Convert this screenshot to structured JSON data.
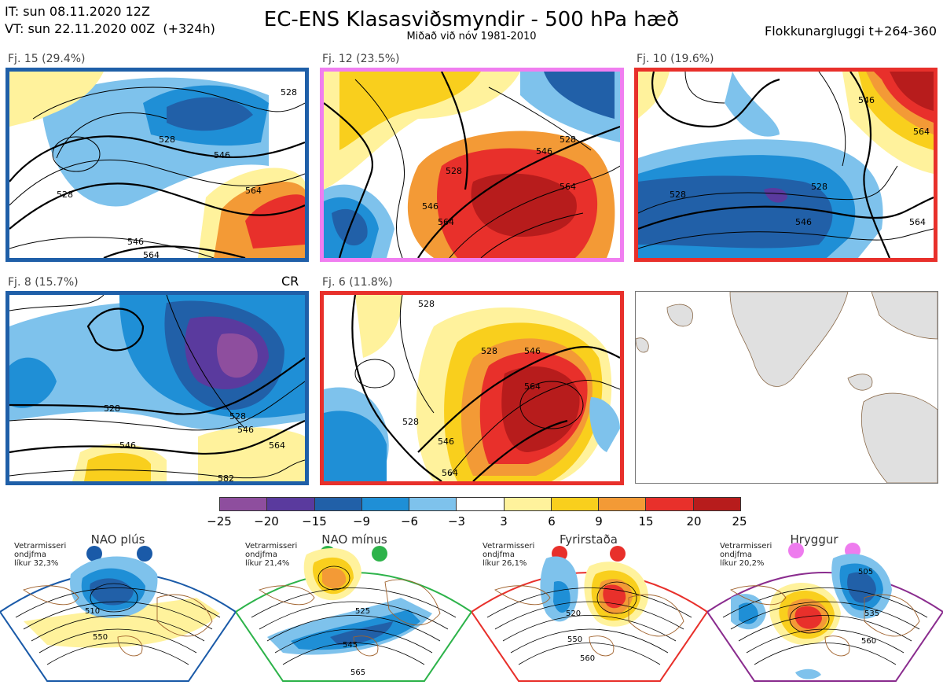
{
  "header": {
    "it_line": "IT: sun 08.11.2020 12Z",
    "vt_line": "VT: sun 22.11.2020 00Z  (+324h)",
    "title": "EC-ENS Klasasviðsmyndir - 500 hPa hæð",
    "subtitle": "Miðað við nóv 1981-2010",
    "window": "Flokkunargluggi t+264-360"
  },
  "panels": [
    {
      "label": "Fj. 15 (29.4%)",
      "border": "#1f5fa8",
      "contours": [
        "528",
        "546",
        "564",
        "528",
        "546",
        "564",
        "528"
      ]
    },
    {
      "label": "Fj. 12 (23.5%)",
      "border": "#f07ef0",
      "contours": [
        "546",
        "528",
        "564",
        "546",
        "564",
        "528"
      ]
    },
    {
      "label": "Fj. 10 (19.6%)",
      "border": "#e8302b",
      "contours": [
        "528",
        "528",
        "546",
        "564",
        "546",
        "564"
      ]
    },
    {
      "label": "Fj. 8 (15.7%)",
      "border": "#1f5fa8",
      "extra": "CR",
      "contours": [
        "528",
        "546",
        "564",
        "528",
        "546",
        "582"
      ]
    },
    {
      "label": "Fj. 6 (11.8%)",
      "border": "#e8302b",
      "contours": [
        "528",
        "546",
        "564",
        "546",
        "528",
        "564",
        "528"
      ]
    }
  ],
  "colorbar": {
    "colors": [
      "#8e4e9e",
      "#5a3a9e",
      "#2160a8",
      "#1f8fd6",
      "#7ec2ec",
      "#ffffff",
      "#fff29c",
      "#f9cf1d",
      "#f39a36",
      "#e8302b",
      "#b71c1c"
    ],
    "ticks": [
      "−25",
      "−20",
      "−15",
      "−9",
      "−6",
      "−3",
      "3",
      "6",
      "9",
      "15",
      "20",
      "25"
    ]
  },
  "regimes": [
    {
      "title": "NAO plús",
      "stat_label": "Vetrarmisseri\nondjfma\nlíkur 32,3%",
      "dot_color": "#1a5aa8",
      "border": "#1a5aa8",
      "contours": [
        "510",
        "550"
      ]
    },
    {
      "title": "NAO mínus",
      "stat_label": "Vetrarmisseri\nondjfma\nlíkur 21,4%",
      "dot_color": "#2db34a",
      "border": "#2db34a",
      "contours": [
        "525",
        "545",
        "565"
      ]
    },
    {
      "title": "Fyrirstaða",
      "stat_label": "Vetrarmisseri\nondjfma\nlíkur 26,1%",
      "dot_color": "#e8302b",
      "border": "#e8302b",
      "contours": [
        "520",
        "550",
        "560"
      ]
    },
    {
      "title": "Hryggur",
      "stat_label": "Vetrarmisseri\nondjfma\nlíkur 20,2%",
      "dot_color": "#ee7cee",
      "border": "#8a2c8e",
      "contours": [
        "505",
        "535",
        "560"
      ]
    }
  ]
}
